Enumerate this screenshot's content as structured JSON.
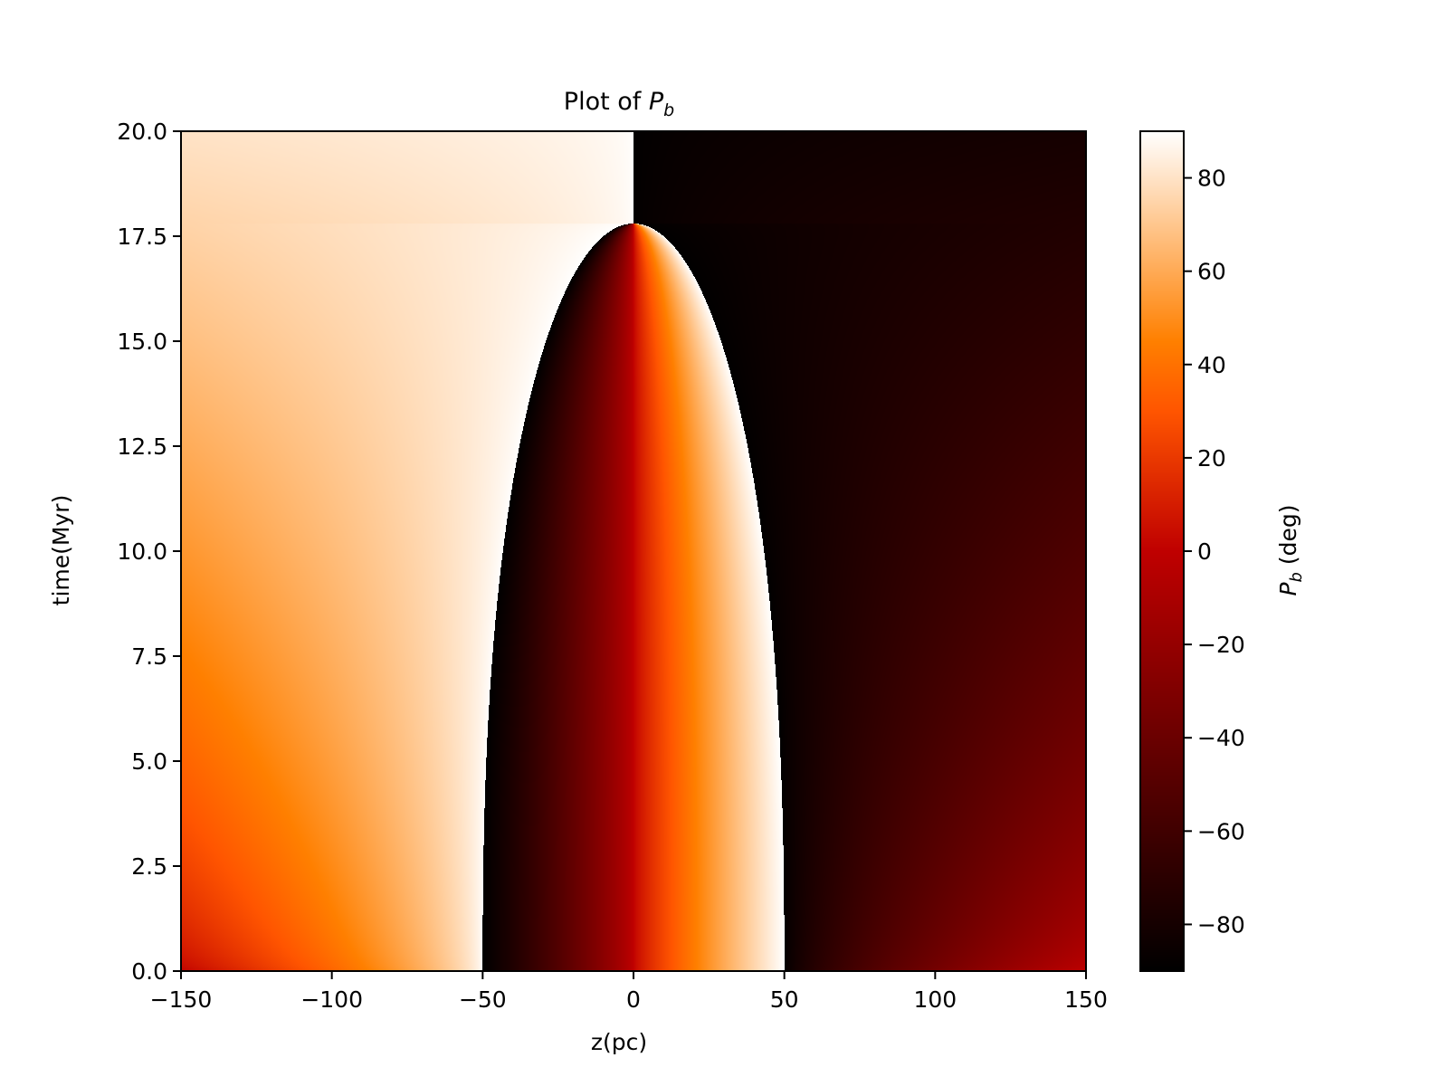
{
  "chart_data": {
    "type": "heatmap",
    "title": "Plot of P_b",
    "title_prefix": "Plot of ",
    "title_symbol": "P",
    "title_subscript": "b",
    "xlabel": "z(pc)",
    "ylabel": "time(Myr)",
    "xlim": [
      -150,
      150
    ],
    "ylim": [
      0,
      20
    ],
    "xticks": [
      -150,
      -100,
      -50,
      0,
      50,
      100,
      150
    ],
    "xtick_labels": [
      "−150",
      "−100",
      "−50",
      "0",
      "50",
      "100",
      "150"
    ],
    "yticks": [
      0,
      2.5,
      5,
      7.5,
      10,
      12.5,
      15,
      17.5,
      20
    ],
    "ytick_labels": [
      "0.0",
      "2.5",
      "5.0",
      "7.5",
      "10.0",
      "12.5",
      "15.0",
      "17.5",
      "20.0"
    ],
    "colorbar": {
      "label": "P_b (deg)",
      "label_symbol": "P",
      "label_subscript": "b",
      "label_unit": " (deg)",
      "colormap": "gist_heat",
      "range": [
        -90,
        90
      ],
      "ticks": [
        -80,
        -60,
        -40,
        -20,
        0,
        20,
        40,
        60,
        80
      ],
      "tick_labels": [
        "−80",
        "−60",
        "−40",
        "−20",
        "0",
        "20",
        "40",
        "60",
        "80"
      ]
    },
    "features": {
      "inner_region": {
        "z_range_at_t0": [
          -50,
          50
        ],
        "apex": {
          "z": 0,
          "time": 17.8
        },
        "description_values": "boundary z = ±50 at t = 0 closing to z = 0 at t ≈ 17.8 Myr"
      },
      "values": {
        "left_outer_t0": 0,
        "left_outer_t20": 80,
        "just_outside_left_boundary": 90,
        "just_inside_left_boundary": -90,
        "center_line": 0,
        "just_inside_right_boundary": 90,
        "just_outside_right_boundary": -90,
        "right_outer_t0": 0,
        "right_outer_t20": -80
      }
    }
  }
}
